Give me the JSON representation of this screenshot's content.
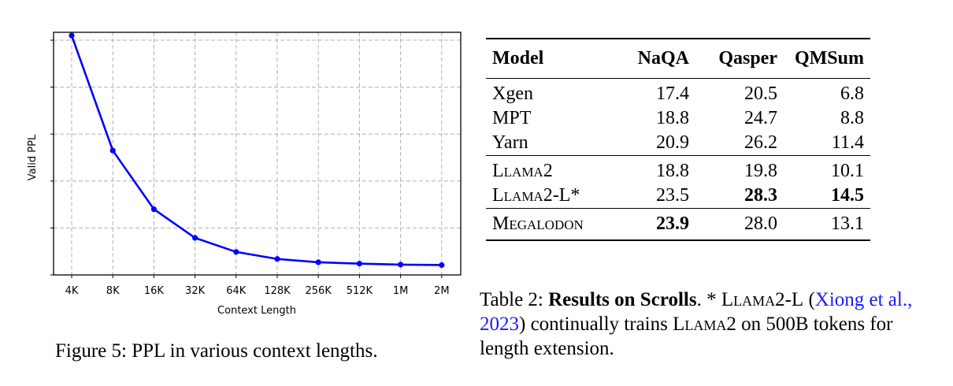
{
  "figure": {
    "caption": "Figure 5: PPL in various context lengths."
  },
  "chart_data": {
    "type": "line",
    "title": "",
    "xlabel": "Context Length",
    "ylabel": "Valid PPL",
    "categories": [
      "4K",
      "8K",
      "16K",
      "32K",
      "64K",
      "128K",
      "256K",
      "512K",
      "1M",
      "2M"
    ],
    "series": [
      {
        "name": "Valid PPL",
        "color": "#0000ff",
        "marker": "circle",
        "values": [
          5.1,
          2.65,
          1.4,
          0.79,
          0.49,
          0.34,
          0.27,
          0.24,
          0.22,
          0.21
        ]
      }
    ],
    "y_units_note": "relative units (gridline spacing = 1); y tick labels not shown",
    "ylim": [
      0,
      5.2
    ],
    "y_gridlines": [
      1,
      2,
      3,
      4,
      5
    ],
    "grid": true,
    "grid_style": "dashed",
    "legend": "none"
  },
  "table": {
    "caption_label": "Table 2:",
    "caption_bold": "Results on Scrolls",
    "caption_rest_1": ". * ",
    "caption_llama2l": "Llama2-L",
    "caption_open_paren": " (",
    "caption_cite": "Xiong et al., 2023",
    "caption_rest_2": ") continually trains ",
    "caption_llama2": "Llama2",
    "caption_rest_3": " on 500B tokens for length extension.",
    "headers": [
      "Model",
      "NaQA",
      "Qasper",
      "QMSum"
    ],
    "groups": [
      [
        {
          "model": "Xgen",
          "smallcaps": false,
          "values": [
            "17.4",
            "20.5",
            "6.8"
          ],
          "bold": [
            false,
            false,
            false
          ]
        },
        {
          "model": "MPT",
          "smallcaps": false,
          "values": [
            "18.8",
            "24.7",
            "8.8"
          ],
          "bold": [
            false,
            false,
            false
          ]
        },
        {
          "model": "Yarn",
          "smallcaps": false,
          "values": [
            "20.9",
            "26.2",
            "11.4"
          ],
          "bold": [
            false,
            false,
            false
          ]
        }
      ],
      [
        {
          "model": "Llama2",
          "smallcaps": true,
          "values": [
            "18.8",
            "19.8",
            "10.1"
          ],
          "bold": [
            false,
            false,
            false
          ]
        },
        {
          "model": "Llama2-L*",
          "smallcaps": true,
          "values": [
            "23.5",
            "28.3",
            "14.5"
          ],
          "bold": [
            false,
            true,
            true
          ]
        }
      ],
      [
        {
          "model": "Megalodon",
          "smallcaps": true,
          "values": [
            "23.9",
            "28.0",
            "13.1"
          ],
          "bold": [
            true,
            false,
            false
          ]
        }
      ]
    ]
  }
}
